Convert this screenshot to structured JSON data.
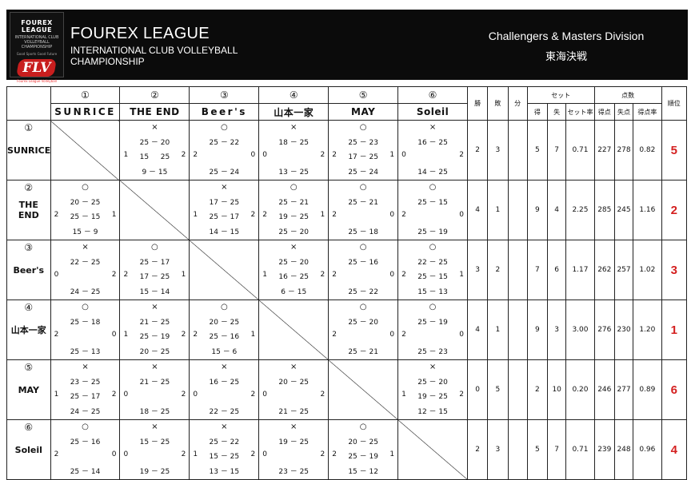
{
  "header": {
    "logo_top": "FOUREX LEAGUE",
    "logo_sub": "INTERNATIONAL CLUB VOLLEYBALL CHAMPIONSHIP",
    "logo_tagline": "Good Sports Good Future",
    "logo_mark": "FLV",
    "logo_bottom": "Fourex League Volleyball",
    "title": "FOUREX LEAGUE",
    "subtitle": "INTERNATIONAL CLUB VOLLEYBALL CHAMPIONSHIP",
    "division": "Challengers & Masters Division",
    "region": "東海決戦"
  },
  "columns": {
    "win": "勝",
    "lose": "敗",
    "draw": "分",
    "set_group": "セット",
    "set_gain": "得",
    "set_loss": "失",
    "set_rate": "セット率",
    "pt_group": "点数",
    "pt_gain": "得点",
    "pt_loss": "失点",
    "pt_rate": "得点率",
    "rank": "順位"
  },
  "teams": [
    {
      "num": "①",
      "name": "SUNRICE",
      "name_spaced": "SUNRICE"
    },
    {
      "num": "②",
      "name": "THE END",
      "name_spaced": "THE END"
    },
    {
      "num": "③",
      "name": "Beer's",
      "name_spaced": "Beer's"
    },
    {
      "num": "④",
      "name": "山本一家",
      "name_spaced": "山本一家"
    },
    {
      "num": "⑤",
      "name": "MAY",
      "name_spaced": "MAY"
    },
    {
      "num": "⑥",
      "name": "Soleil",
      "name_spaced": "Soleil"
    }
  ],
  "matrix": [
    [
      null,
      {
        "sym": "×",
        "s1": "25 － 20",
        "s2": "15 　 25",
        "s3": "9 － 15",
        "left": "1",
        "right": "2"
      },
      {
        "sym": "○",
        "s1": "25 － 22",
        "s2": "",
        "s3": "25 － 24",
        "left": "2",
        "right": "0"
      },
      {
        "sym": "×",
        "s1": "18 － 25",
        "s2": "",
        "s3": "13 － 25",
        "left": "0",
        "right": "2"
      },
      {
        "sym": "○",
        "s1": "25 － 23",
        "s2": "17 － 25",
        "s3": "25 － 24",
        "left": "2",
        "right": "1"
      },
      {
        "sym": "×",
        "s1": "16 － 25",
        "s2": "",
        "s3": "14 － 25",
        "left": "0",
        "right": "2"
      }
    ],
    [
      {
        "sym": "○",
        "s1": "20 － 25",
        "s2": "25 － 15",
        "s3": "15 － 9",
        "left": "2",
        "right": "1"
      },
      null,
      {
        "sym": "×",
        "s1": "17 － 25",
        "s2": "25 － 17",
        "s3": "14 － 15",
        "left": "1",
        "right": "2"
      },
      {
        "sym": "○",
        "s1": "25 － 21",
        "s2": "19 － 25",
        "s3": "25 － 20",
        "left": "2",
        "right": "1"
      },
      {
        "sym": "○",
        "s1": "25 － 21",
        "s2": "",
        "s3": "25 － 18",
        "left": "2",
        "right": "0"
      },
      {
        "sym": "○",
        "s1": "25 － 15",
        "s2": "",
        "s3": "25 － 19",
        "left": "2",
        "right": "0"
      }
    ],
    [
      {
        "sym": "×",
        "s1": "22 － 25",
        "s2": "",
        "s3": "24 － 25",
        "left": "0",
        "right": "2"
      },
      {
        "sym": "○",
        "s1": "25 － 17",
        "s2": "17 － 25",
        "s3": "15 － 14",
        "left": "2",
        "right": "1"
      },
      null,
      {
        "sym": "×",
        "s1": "25 － 20",
        "s2": "16 － 25",
        "s3": "6 － 15",
        "left": "1",
        "right": "2"
      },
      {
        "sym": "○",
        "s1": "25 － 16",
        "s2": "",
        "s3": "25 － 22",
        "left": "2",
        "right": "0"
      },
      {
        "sym": "○",
        "s1": "22 － 25",
        "s2": "25 － 15",
        "s3": "15 － 13",
        "left": "2",
        "right": "1"
      }
    ],
    [
      {
        "sym": "○",
        "s1": "25 － 18",
        "s2": "",
        "s3": "25 － 13",
        "left": "2",
        "right": "0"
      },
      {
        "sym": "×",
        "s1": "21 － 25",
        "s2": "25 － 19",
        "s3": "20 － 25",
        "left": "1",
        "right": "2"
      },
      {
        "sym": "○",
        "s1": "20 － 25",
        "s2": "25 － 16",
        "s3": "15 － 6",
        "left": "2",
        "right": "1"
      },
      null,
      {
        "sym": "○",
        "s1": "25 － 20",
        "s2": "",
        "s3": "25 － 21",
        "left": "2",
        "right": "0"
      },
      {
        "sym": "○",
        "s1": "25 － 19",
        "s2": "",
        "s3": "25 － 23",
        "left": "2",
        "right": "0"
      }
    ],
    [
      {
        "sym": "×",
        "s1": "23 － 25",
        "s2": "25 － 17",
        "s3": "24 － 25",
        "left": "1",
        "right": "2"
      },
      {
        "sym": "×",
        "s1": "21 － 25",
        "s2": "",
        "s3": "18 － 25",
        "left": "0",
        "right": "2"
      },
      {
        "sym": "×",
        "s1": "16 － 25",
        "s2": "",
        "s3": "22 － 25",
        "left": "0",
        "right": "2"
      },
      {
        "sym": "×",
        "s1": "20 － 25",
        "s2": "",
        "s3": "21 － 25",
        "left": "0",
        "right": "2"
      },
      null,
      {
        "sym": "×",
        "s1": "25 － 20",
        "s2": "19 － 25",
        "s3": "12 － 15",
        "left": "1",
        "right": "2"
      }
    ],
    [
      {
        "sym": "○",
        "s1": "25 － 16",
        "s2": "",
        "s3": "25 － 14",
        "left": "2",
        "right": "0"
      },
      {
        "sym": "×",
        "s1": "15 － 25",
        "s2": "",
        "s3": "19 － 25",
        "left": "0",
        "right": "2"
      },
      {
        "sym": "×",
        "s1": "25 － 22",
        "s2": "15 － 25",
        "s3": "13 － 15",
        "left": "1",
        "right": "2"
      },
      {
        "sym": "×",
        "s1": "19 － 25",
        "s2": "",
        "s3": "23 － 25",
        "left": "0",
        "right": "2"
      },
      {
        "sym": "○",
        "s1": "20 － 25",
        "s2": "25 － 19",
        "s3": "15 － 12",
        "left": "2",
        "right": "1"
      },
      null
    ]
  ],
  "stats": [
    {
      "win": "2",
      "lose": "3",
      "draw": "",
      "sg": "5",
      "sl": "7",
      "sr": "0.71",
      "pg": "227",
      "pl": "278",
      "pr": "0.82",
      "rank": "5"
    },
    {
      "win": "4",
      "lose": "1",
      "draw": "",
      "sg": "9",
      "sl": "4",
      "sr": "2.25",
      "pg": "285",
      "pl": "245",
      "pr": "1.16",
      "rank": "2"
    },
    {
      "win": "3",
      "lose": "2",
      "draw": "",
      "sg": "7",
      "sl": "6",
      "sr": "1.17",
      "pg": "262",
      "pl": "257",
      "pr": "1.02",
      "rank": "3"
    },
    {
      "win": "4",
      "lose": "1",
      "draw": "",
      "sg": "9",
      "sl": "3",
      "sr": "3.00",
      "pg": "276",
      "pl": "230",
      "pr": "1.20",
      "rank": "1"
    },
    {
      "win": "0",
      "lose": "5",
      "draw": "",
      "sg": "2",
      "sl": "10",
      "sr": "0.20",
      "pg": "246",
      "pl": "277",
      "pr": "0.89",
      "rank": "6"
    },
    {
      "win": "2",
      "lose": "3",
      "draw": "",
      "sg": "5",
      "sl": "7",
      "sr": "0.71",
      "pg": "239",
      "pl": "248",
      "pr": "0.96",
      "rank": "4"
    }
  ]
}
